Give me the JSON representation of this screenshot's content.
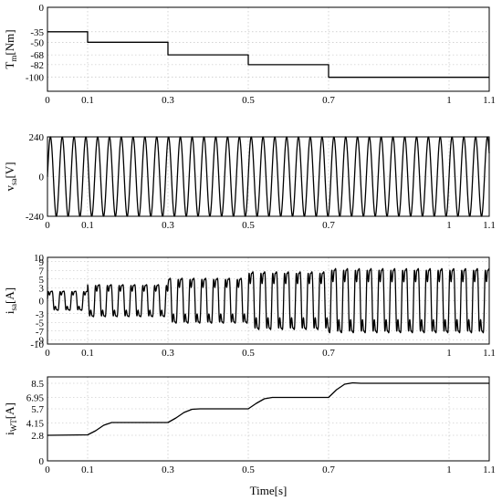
{
  "figure": {
    "xlabel": "Time[s]"
  },
  "chart_data": [
    {
      "type": "line",
      "ylabel_main": "T",
      "ylabel_sub": "m",
      "ylabel_unit": "[Nm]",
      "xlim": [
        0,
        1.1
      ],
      "ylim": [
        -120,
        0
      ],
      "xticks": [
        0,
        0.1,
        0.3,
        0.5,
        0.7,
        1,
        1.1
      ],
      "yticks": [
        0,
        -35,
        -50,
        -68,
        -82,
        -100
      ],
      "grid": true,
      "series": [
        {
          "kind": "step",
          "x": [
            0,
            0.1,
            0.1,
            0.3,
            0.3,
            0.5,
            0.5,
            0.7,
            0.7,
            1.1
          ],
          "y": [
            -35,
            -35,
            -50,
            -50,
            -68,
            -68,
            -82,
            -82,
            -100,
            -100
          ]
        }
      ]
    },
    {
      "type": "line",
      "ylabel_main": "v",
      "ylabel_sub": "sa",
      "ylabel_unit": "[V]",
      "xlim": [
        0,
        1.1
      ],
      "ylim": [
        -240,
        240
      ],
      "xticks": [
        0,
        0.1,
        0.3,
        0.5,
        0.7,
        1,
        1.1
      ],
      "yticks": [
        240,
        0,
        -240
      ],
      "grid": true,
      "series": [
        {
          "kind": "sine",
          "amplitude": 240,
          "frequency_hz": 34,
          "phase_deg": 0,
          "x_range": [
            0,
            1.1
          ]
        }
      ]
    },
    {
      "type": "line",
      "ylabel_main": "i",
      "ylabel_sub": "sa",
      "ylabel_unit": "[A]",
      "xlim": [
        0,
        1.1
      ],
      "ylim": [
        -10,
        10
      ],
      "xticks": [
        0,
        0.1,
        0.3,
        0.5,
        0.7,
        1,
        1.1
      ],
      "yticks": [
        10,
        9,
        7,
        5,
        3,
        0,
        -3,
        -5,
        -7,
        -9,
        -10
      ],
      "grid": true,
      "series": [
        {
          "kind": "distorted-sine",
          "frequency_hz": 34,
          "x_range": [
            0,
            1.1
          ],
          "amplitude_steps": [
            {
              "from": 0,
              "to": 0.1,
              "amplitude": 3
            },
            {
              "from": 0.1,
              "to": 0.3,
              "amplitude": 5
            },
            {
              "from": 0.3,
              "to": 0.5,
              "amplitude": 7
            },
            {
              "from": 0.5,
              "to": 0.7,
              "amplitude": 9
            },
            {
              "from": 0.7,
              "to": 1.1,
              "amplitude": 10
            }
          ]
        }
      ]
    },
    {
      "type": "line",
      "ylabel_main": "i",
      "ylabel_sub": "WT",
      "ylabel_unit": "[A]",
      "xlim": [
        0,
        1.1
      ],
      "ylim": [
        0,
        9.2
      ],
      "xticks": [
        0,
        0.1,
        0.3,
        0.5,
        0.7,
        1,
        1.1
      ],
      "yticks": [
        8.5,
        6.95,
        5.7,
        4.15,
        2.8,
        0
      ],
      "grid": true,
      "series": [
        {
          "kind": "line",
          "x": [
            0,
            0.1,
            0.12,
            0.14,
            0.16,
            0.18,
            0.3,
            0.32,
            0.34,
            0.36,
            0.38,
            0.5,
            0.52,
            0.54,
            0.56,
            0.58,
            0.7,
            0.72,
            0.74,
            0.76,
            0.78,
            1.1
          ],
          "y": [
            2.8,
            2.85,
            3.3,
            3.9,
            4.2,
            4.2,
            4.2,
            4.7,
            5.3,
            5.65,
            5.7,
            5.7,
            6.3,
            6.8,
            6.95,
            6.95,
            6.95,
            7.8,
            8.4,
            8.55,
            8.5,
            8.5
          ]
        }
      ]
    }
  ]
}
